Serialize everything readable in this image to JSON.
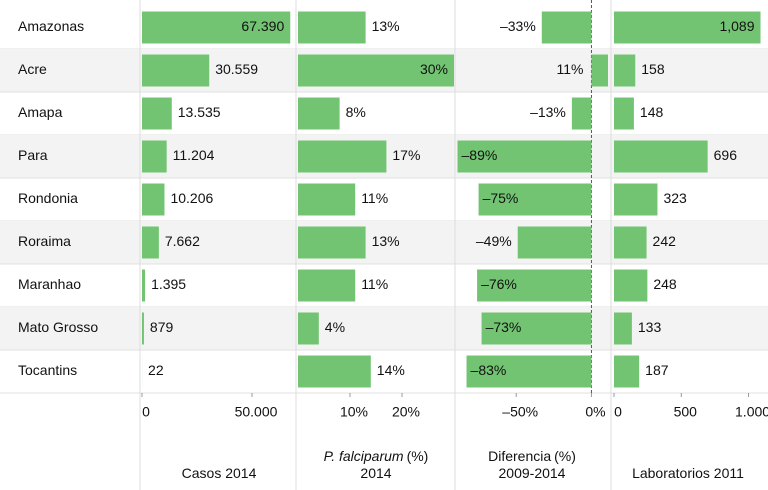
{
  "chart_data": {
    "type": "bar",
    "color": "#72c472",
    "categories": [
      "Amazonas",
      "Acre",
      "Amapa",
      "Para",
      "Rondonia",
      "Roraima",
      "Maranhao",
      "Mato Grosso",
      "Tocantins"
    ],
    "series": [
      {
        "label_lines": [
          [
            "Casos 2014"
          ]
        ],
        "values": [
          67390,
          30559,
          13535,
          11204,
          10206,
          7662,
          1395,
          879,
          22
        ],
        "value_labels": [
          "67.390",
          "30.559",
          "13.535",
          "11.204",
          "10.206",
          "7.662",
          "1.395",
          "879",
          "22"
        ],
        "xlim": [
          0,
          70000
        ],
        "xticks": [
          0,
          {
            "value": 50000,
            "label": "50.000"
          }
        ]
      },
      {
        "label_lines": [
          [
            "P. falciparum",
            "(%)"
          ],
          [
            "2014"
          ]
        ],
        "italic_first": true,
        "values": [
          13,
          30,
          8,
          17,
          11,
          13,
          11,
          4,
          14
        ],
        "value_labels": [
          "13%",
          "30%",
          "8%",
          "17%",
          "11%",
          "13%",
          "11%",
          "4%",
          "14%"
        ],
        "xlim": [
          0,
          30
        ],
        "xticks": [
          {
            "value": 10,
            "label": "10%"
          },
          {
            "value": 20,
            "label": "20%"
          }
        ]
      },
      {
        "label_lines": [
          [
            "Diferencia",
            "(%)"
          ],
          [
            "2009-2014"
          ]
        ],
        "values": [
          -33,
          11,
          -13,
          -89,
          -75,
          -49,
          -76,
          -73,
          -83
        ],
        "value_labels": [
          "–33%",
          "11%",
          "–13%",
          "–89%",
          "–75%",
          "–49%",
          "–76%",
          "–73%",
          "–83%"
        ],
        "xlim": [
          -90,
          11
        ],
        "xticks": [
          {
            "value": -50,
            "label": "–50%"
          },
          {
            "value": 0,
            "label": "0%"
          }
        ]
      },
      {
        "label_lines": [
          [
            "Laboratorios 2011"
          ]
        ],
        "values": [
          1089,
          158,
          148,
          696,
          323,
          242,
          248,
          133,
          187
        ],
        "value_labels": [
          "1,089",
          "158",
          "148",
          "696",
          "323",
          "242",
          "248",
          "133",
          "187"
        ],
        "xlim": [
          0,
          1100
        ],
        "xticks": [
          0,
          500,
          {
            "value": 1000,
            "label": "1.000"
          }
        ]
      }
    ]
  }
}
